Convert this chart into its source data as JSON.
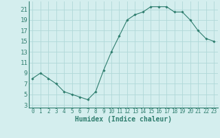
{
  "x": [
    0,
    1,
    2,
    3,
    4,
    5,
    6,
    7,
    8,
    9,
    10,
    11,
    12,
    13,
    14,
    15,
    16,
    17,
    18,
    19,
    20,
    21,
    22,
    23
  ],
  "y": [
    8.0,
    9.0,
    8.0,
    7.0,
    5.5,
    5.0,
    4.5,
    4.0,
    5.5,
    9.5,
    13.0,
    16.0,
    19.0,
    20.0,
    20.5,
    21.5,
    21.5,
    21.5,
    20.5,
    20.5,
    19.0,
    17.0,
    15.5,
    15.0
  ],
  "xlabel": "Humidex (Indice chaleur)",
  "yticks": [
    3,
    5,
    7,
    9,
    11,
    13,
    15,
    17,
    19,
    21
  ],
  "xtick_labels": [
    "0",
    "1",
    "2",
    "3",
    "4",
    "5",
    "6",
    "7",
    "8",
    "9",
    "10",
    "11",
    "12",
    "13",
    "14",
    "15",
    "16",
    "17",
    "18",
    "19",
    "20",
    "21",
    "22",
    "23"
  ],
  "ylim": [
    2.5,
    22.5
  ],
  "xlim": [
    -0.5,
    23.5
  ],
  "line_color": "#2e7d6e",
  "marker_color": "#2e7d6e",
  "bg_color": "#d4eeee",
  "grid_color": "#b0d8d8",
  "axis_color": "#2e7d6e",
  "xlabel_color": "#2e7d6e",
  "xlabel_fontsize": 7,
  "ytick_fontsize": 6.5,
  "xtick_fontsize": 5.5
}
